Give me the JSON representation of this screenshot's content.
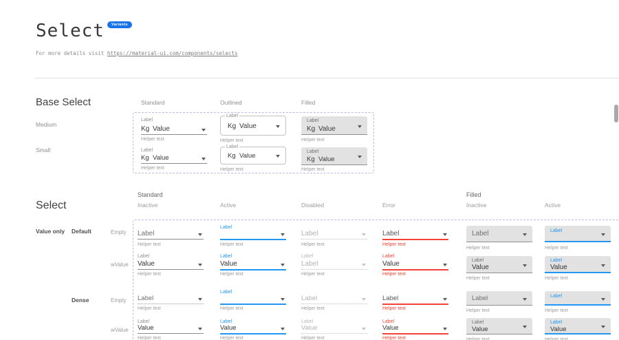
{
  "page": {
    "title": "Select",
    "badge": "Variants",
    "subtitle_prefix": "For more details visit",
    "link_url": "https://material-ui.com/components/selects"
  },
  "colors": {
    "accent_blue": "#2196f3",
    "error_red": "#f44336",
    "badge_blue": "#1a73e8",
    "filled_bg": "#e2e2e2",
    "dashed_border": "#b9bce8",
    "underline_gray": "#8c8c8c",
    "disabled_gray": "#bfbfbf",
    "text_dark": "#333333",
    "text_gray": "#6f6f6f",
    "helper_gray": "#9b9b9b"
  },
  "base_select": {
    "heading": "Base Select",
    "column_headers": [
      "Standard",
      "Outlined",
      "Filled"
    ],
    "row_headers": [
      "Medium",
      "Small"
    ],
    "select": {
      "label": "Label",
      "adornment": "Kg",
      "value": "Value",
      "helper": "Helper text"
    }
  },
  "variants": {
    "heading": "Select",
    "group_headers": [
      {
        "label": "Standard",
        "states": [
          "Inactive",
          "Active",
          "Disabled",
          "Error"
        ]
      },
      {
        "label": "Filled",
        "states": [
          "Inactive",
          "Active"
        ]
      }
    ],
    "row_group_label": "Value only",
    "row_sets": [
      {
        "label": "Default",
        "rows": [
          "Empty",
          "wValue"
        ]
      },
      {
        "label": "Dense",
        "rows": [
          "Empty",
          "wValue"
        ]
      }
    ],
    "helper": "Helper text",
    "grid": {
      "columns": [
        "standard-inactive",
        "standard-active",
        "standard-disabled",
        "standard-error",
        "filled-inactive",
        "filled-active"
      ],
      "rows": [
        {
          "name": "default-empty",
          "cells": [
            {
              "float_label": "",
              "value": "Label"
            },
            {
              "float_label": "Label",
              "value": ""
            },
            {
              "float_label": "",
              "value": "Label"
            },
            {
              "float_label": "",
              "value": "Label"
            },
            {
              "float_label": "",
              "value": "Label"
            },
            {
              "float_label": "Label",
              "value": ""
            }
          ]
        },
        {
          "name": "default-wvalue",
          "cells": [
            {
              "float_label": "Label",
              "value": "Value"
            },
            {
              "float_label": "Label",
              "value": "Value"
            },
            {
              "float_label": "Label",
              "value": "Label"
            },
            {
              "float_label": "Label",
              "value": "Value"
            },
            {
              "float_label": "Label",
              "value": "Value"
            },
            {
              "float_label": "Label",
              "value": "Value"
            }
          ]
        },
        {
          "name": "dense-empty",
          "cells": [
            {
              "float_label": "",
              "value": "Label"
            },
            {
              "float_label": "Label",
              "value": ""
            },
            {
              "float_label": "",
              "value": "Label"
            },
            {
              "float_label": "",
              "value": "Label"
            },
            {
              "float_label": "",
              "value": "Label"
            },
            {
              "float_label": "Label",
              "value": ""
            }
          ]
        },
        {
          "name": "dense-wvalue",
          "cells": [
            {
              "float_label": "Label",
              "value": "Value"
            },
            {
              "float_label": "Label",
              "value": "Value"
            },
            {
              "float_label": "Label",
              "value": "Value"
            },
            {
              "float_label": "Label",
              "value": "Value"
            },
            {
              "float_label": "Label",
              "value": "Value"
            },
            {
              "float_label": "Label",
              "value": "Value"
            }
          ]
        }
      ]
    }
  }
}
